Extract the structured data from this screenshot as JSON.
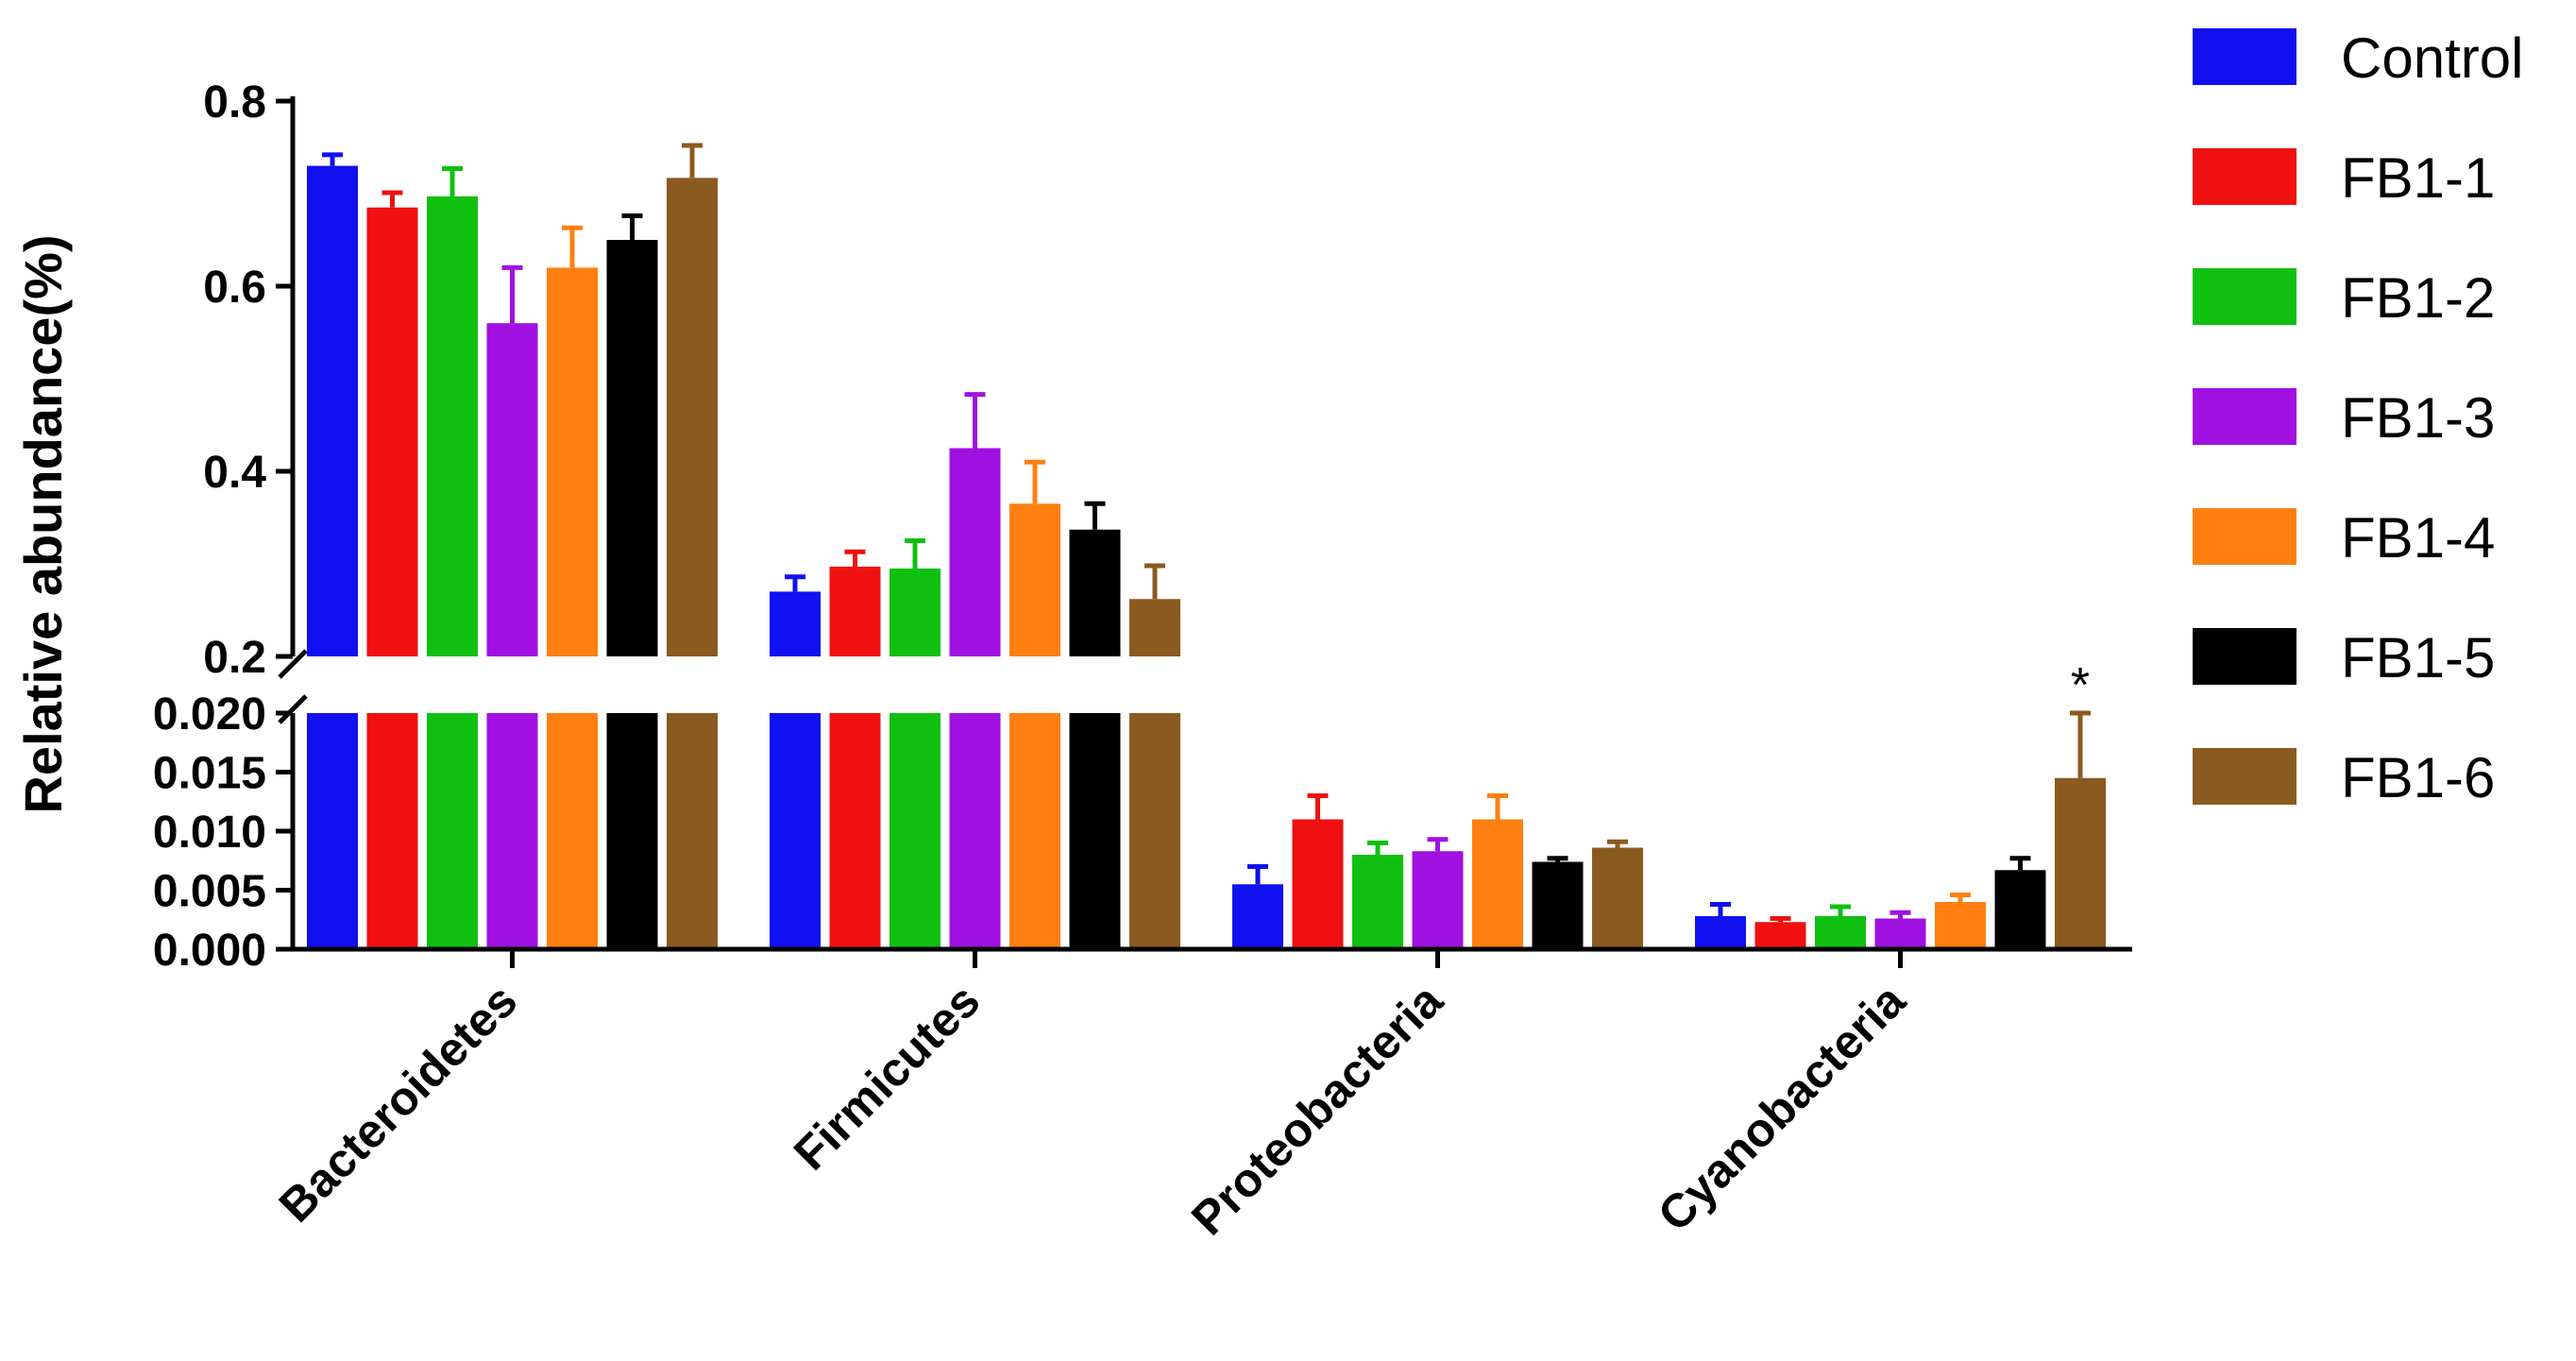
{
  "chart_data": {
    "type": "bar",
    "title": "",
    "xlabel": "",
    "ylabel": "Relative  abundance(%)",
    "categories": [
      "Bacteroidetes",
      "Firmicutes",
      "Proteobacteria",
      "Cyanobacteria"
    ],
    "y_axis_break": {
      "lower_range": [
        0,
        0.02
      ],
      "upper_range": [
        0.2,
        0.8
      ],
      "lower_ticks": [
        "0.000",
        "0.005",
        "0.010",
        "0.015",
        "0.020"
      ],
      "upper_ticks": [
        "0.2",
        "0.4",
        "0.6",
        "0.8"
      ]
    },
    "series": [
      {
        "name": "Control",
        "color": "#1010f0",
        "values": [
          0.73,
          0.27,
          0.0055,
          0.0028
        ],
        "errors": [
          0.012,
          0.016,
          0.0015,
          0.001
        ]
      },
      {
        "name": "FB1-1",
        "color": "#f01010",
        "values": [
          0.685,
          0.297,
          0.011,
          0.0023
        ],
        "errors": [
          0.016,
          0.016,
          0.002,
          0.0003
        ]
      },
      {
        "name": "FB1-2",
        "color": "#10c010",
        "values": [
          0.697,
          0.295,
          0.008,
          0.0028
        ],
        "errors": [
          0.03,
          0.03,
          0.001,
          0.0008
        ]
      },
      {
        "name": "FB1-3",
        "color": "#a010e0",
        "values": [
          0.56,
          0.425,
          0.0083,
          0.0026
        ],
        "errors": [
          0.06,
          0.058,
          0.001,
          0.0005
        ]
      },
      {
        "name": "FB1-4",
        "color": "#ff8010",
        "values": [
          0.62,
          0.365,
          0.011,
          0.004
        ],
        "errors": [
          0.043,
          0.045,
          0.002,
          0.0006
        ]
      },
      {
        "name": "FB1-5",
        "color": "#000000",
        "values": [
          0.65,
          0.337,
          0.0074,
          0.0067
        ],
        "errors": [
          0.026,
          0.028,
          0.0003,
          0.001
        ]
      },
      {
        "name": "FB1-6",
        "color": "#8b5a20",
        "values": [
          0.717,
          0.262,
          0.0086,
          0.0145
        ],
        "errors": [
          0.035,
          0.036,
          0.0005,
          0.0055
        ]
      }
    ],
    "annotations": [
      {
        "text": "*",
        "category": "Cyanobacteria",
        "series": "FB1-6"
      }
    ],
    "legend_position": "top-right"
  }
}
